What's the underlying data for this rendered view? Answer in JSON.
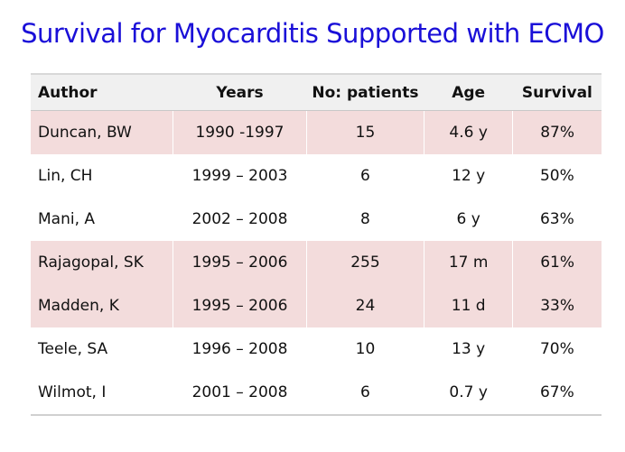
{
  "title": "Survival for Myocarditis Supported with ECMO",
  "table": {
    "headers": [
      "Author",
      "Years",
      "No: patients",
      "Age",
      "Survival"
    ],
    "rows": [
      [
        "Duncan, BW",
        "1990 -1997",
        "15",
        "4.6 y",
        "87%"
      ],
      [
        "Lin, CH",
        "1999 – 2003",
        "6",
        "12 y",
        "50%"
      ],
      [
        "Mani, A",
        "2002 – 2008",
        "8",
        "6 y",
        "63%"
      ],
      [
        "Rajagopal, SK",
        "1995 – 2006",
        "255",
        "17 m",
        "61%"
      ],
      [
        "Madden, K",
        "1995 – 2006",
        "24",
        "11 d",
        "33%"
      ],
      [
        "Teele, SA",
        "1996 – 2008",
        "10",
        "13 y",
        "70%"
      ],
      [
        "Wilmot, I",
        "2001 – 2008",
        "6",
        "0.7 y",
        "67%"
      ]
    ],
    "row_colors": {
      "shaded": "#f3dcdc",
      "plain": "#ffffff",
      "header": "#f0f0f0"
    }
  }
}
